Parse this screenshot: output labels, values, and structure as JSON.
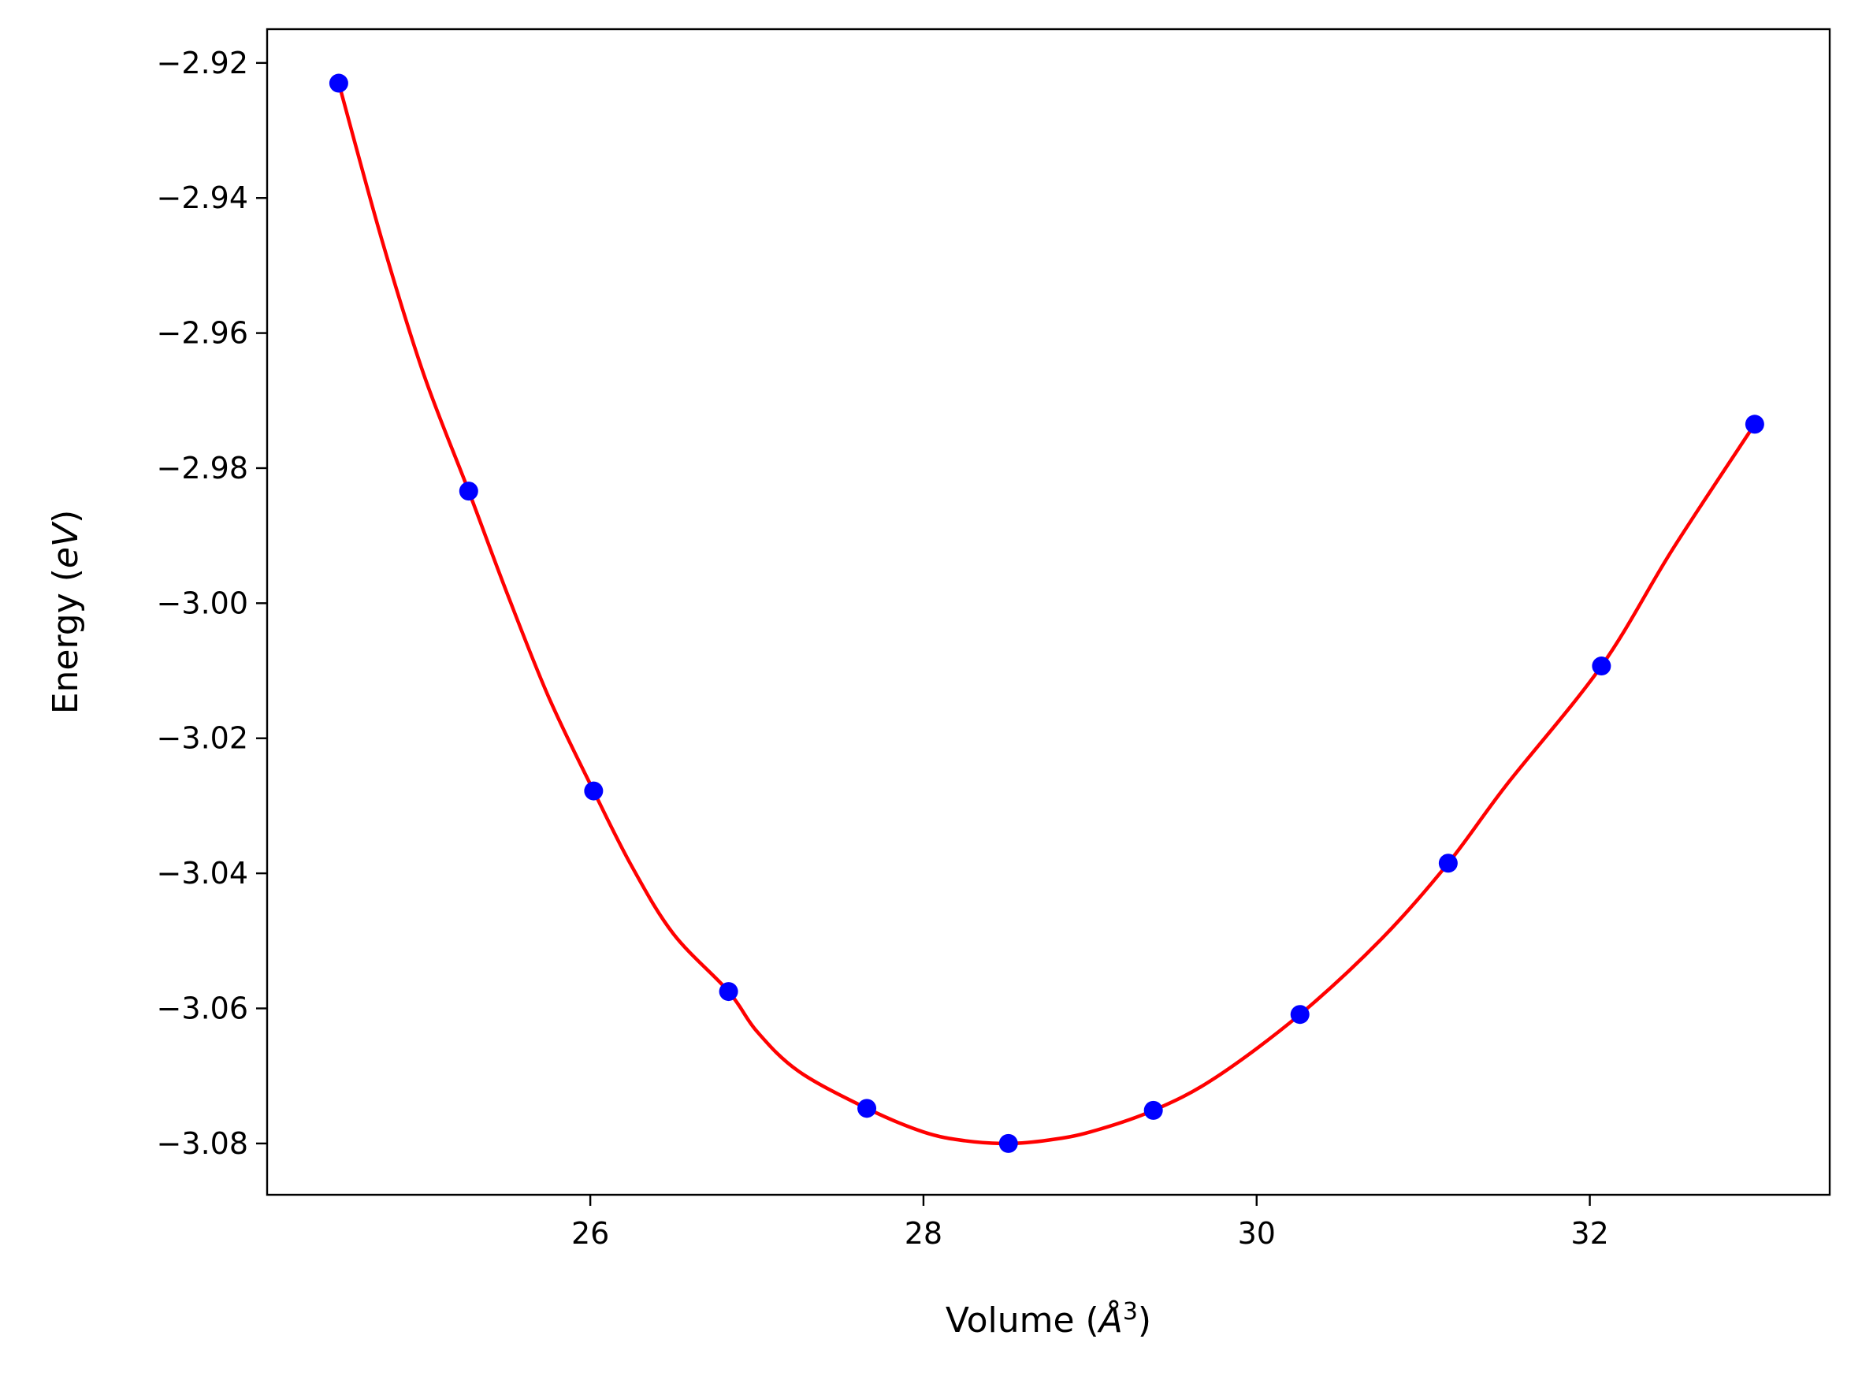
{
  "chart_data": {
    "type": "scatter",
    "title": "",
    "xlabel": "Volume (",
    "xlabel_symbol": "Å",
    "xlabel_sup": "3",
    "xlabel_close": ")",
    "ylabel": "Energy (",
    "ylabel_unit": "eV",
    "ylabel_close": ")",
    "xlim": [
      24.06,
      33.44
    ],
    "ylim": [
      -3.0876,
      -2.915
    ],
    "xticks": [
      26,
      28,
      30,
      32
    ],
    "xtick_labels": [
      "26",
      "28",
      "30",
      "32"
    ],
    "yticks": [
      -2.92,
      -2.94,
      -2.96,
      -2.98,
      -3.0,
      -3.02,
      -3.04,
      -3.06,
      -3.08
    ],
    "ytick_labels": [
      "−2.92",
      "−2.94",
      "−2.96",
      "−2.98",
      "−3.00",
      "−3.02",
      "−3.04",
      "−3.06",
      "−3.08"
    ],
    "grid": false,
    "legend": "none",
    "series": [
      {
        "kind": "points",
        "color": "#0000ff",
        "x": [
          24.49,
          25.27,
          26.02,
          26.83,
          27.66,
          28.51,
          29.38,
          30.26,
          31.15,
          32.07,
          32.99
        ],
        "y": [
          -2.923,
          -2.9834,
          -3.0278,
          -3.0575,
          -3.0748,
          -3.08,
          -3.0751,
          -3.0609,
          -3.0385,
          -3.0093,
          -2.9735
        ]
      },
      {
        "kind": "fit-curve",
        "color": "#ff0000",
        "x": [
          24.49,
          24.75,
          25.0,
          25.27,
          25.5,
          25.75,
          26.02,
          26.25,
          26.5,
          26.83,
          27.0,
          27.25,
          27.66,
          28.0,
          28.25,
          28.51,
          28.75,
          29.0,
          29.38,
          29.75,
          30.26,
          30.75,
          31.15,
          31.5,
          32.07,
          32.5,
          32.99
        ],
        "y": [
          -2.923,
          -2.9463,
          -2.9661,
          -2.9834,
          -2.9985,
          -3.0139,
          -3.0278,
          -3.039,
          -3.049,
          -3.0575,
          -3.0634,
          -3.0693,
          -3.0748,
          -3.0783,
          -3.0796,
          -3.08,
          -3.0795,
          -3.0783,
          -3.0751,
          -3.0703,
          -3.0609,
          -3.0497,
          -3.0385,
          -3.0269,
          -3.0093,
          -2.9919,
          -2.9735
        ]
      }
    ]
  }
}
